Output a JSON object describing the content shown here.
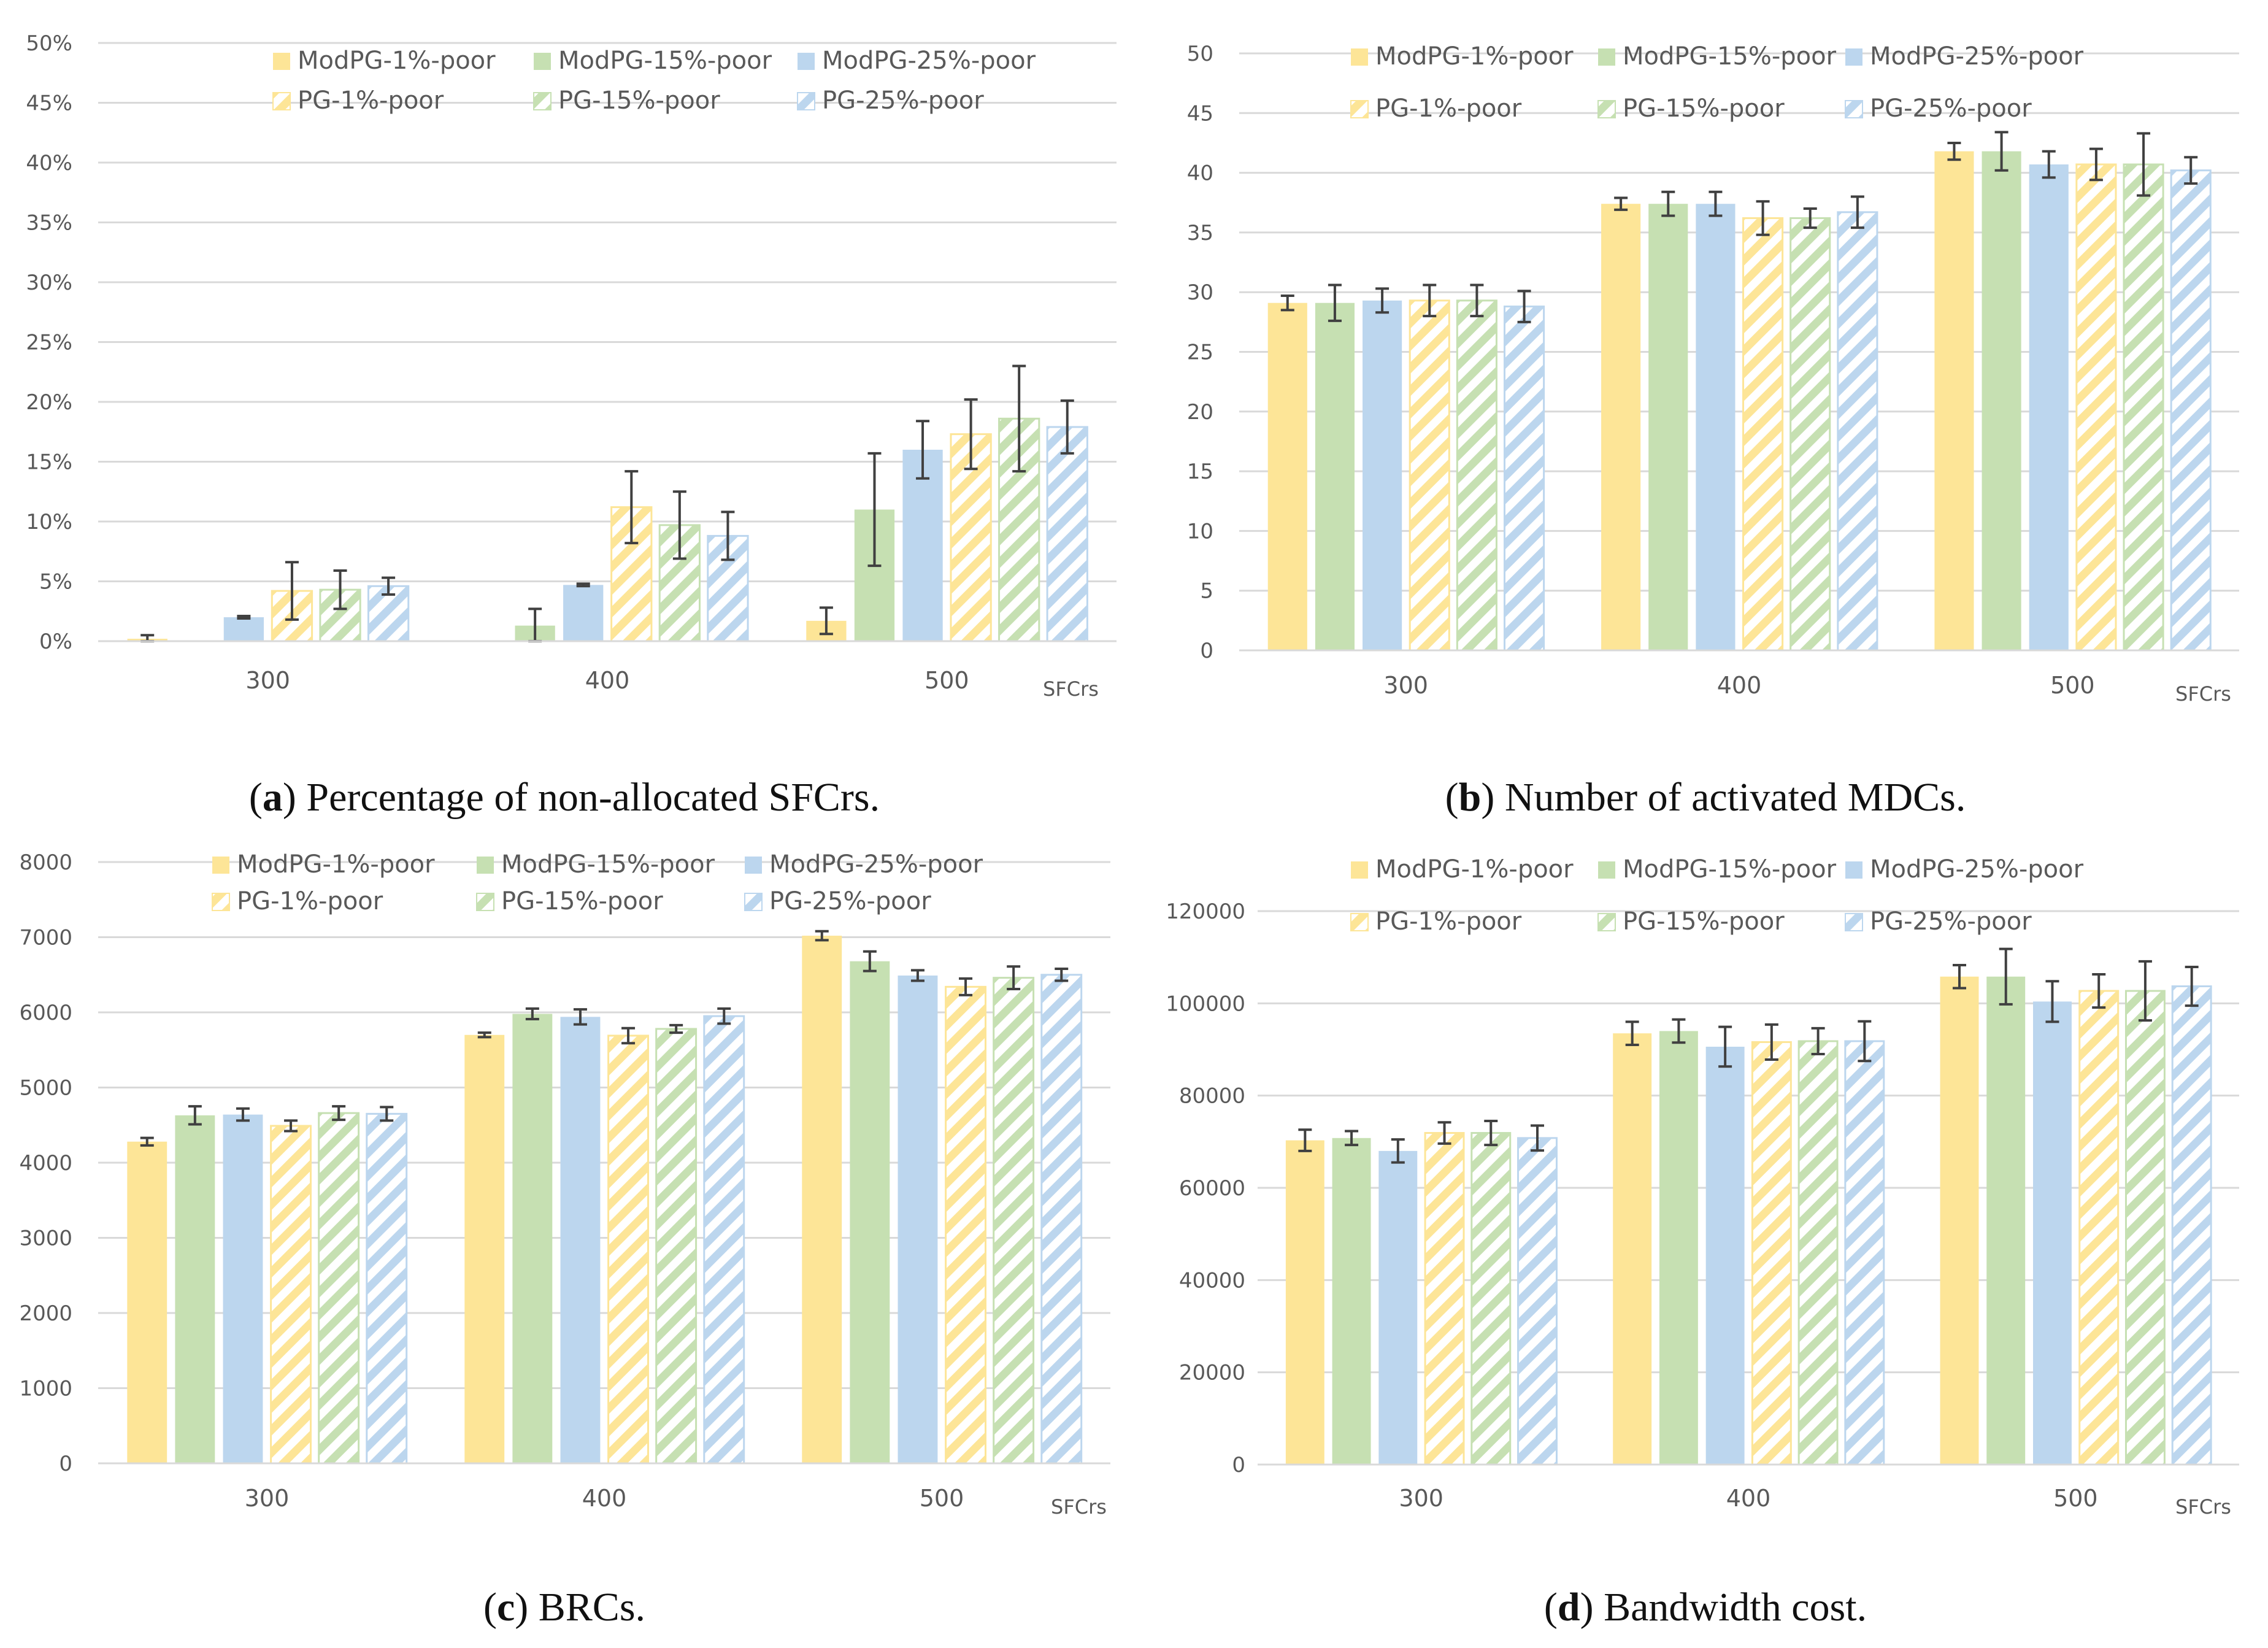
{
  "colors": {
    "ModPG-1%-poor": "#fde597",
    "ModPG-15%-poor": "#c6e0b2",
    "ModPG-25%-poor": "#bcd6ee",
    "PG-1%-poor": "#fde597",
    "PG-15%-poor": "#c6e0b2",
    "PG-25%-poor": "#bcd6ee",
    "grid": "#d9d9d9",
    "axis_text": "#595959",
    "errbar": "#404040"
  },
  "captions": [
    {
      "letter": "a",
      "text": "Percentage of non-allocated SFCrs."
    },
    {
      "letter": "b",
      "text": "Number of activated MDCs."
    },
    {
      "letter": "c",
      "text": "BRCs."
    },
    {
      "letter": "d",
      "text": "Bandwidth cost."
    }
  ],
  "chart_data": [
    {
      "id": "a",
      "type": "bar",
      "title": "Percentage of non-allocated SFCrs.",
      "xlabel": "SFCrs",
      "ylabel": "",
      "categories": [
        "300",
        "400",
        "500"
      ],
      "ylim": [
        0,
        50
      ],
      "yticks": [
        "0%",
        "5%",
        "10%",
        "15%",
        "20%",
        "25%",
        "30%",
        "35%",
        "40%",
        "45%",
        "50%"
      ],
      "ytick_values": [
        0,
        5,
        10,
        15,
        20,
        25,
        30,
        35,
        40,
        45,
        50
      ],
      "legend": "top",
      "grid": true,
      "series": [
        {
          "name": "ModPG-1%-poor",
          "hatched": false,
          "values": [
            0.2,
            0,
            1.7
          ],
          "errors": [
            0.3,
            0,
            1.1
          ]
        },
        {
          "name": "ModPG-15%-poor",
          "hatched": false,
          "values": [
            0,
            1.3,
            11.0
          ],
          "errors": [
            0,
            1.4,
            4.7
          ]
        },
        {
          "name": "ModPG-25%-poor",
          "hatched": false,
          "values": [
            2.0,
            4.7,
            16.0
          ],
          "errors": [
            0.1,
            0.1,
            2.4
          ]
        },
        {
          "name": "PG-1%-poor",
          "hatched": true,
          "values": [
            4.2,
            11.2,
            17.3
          ],
          "errors": [
            2.4,
            3.0,
            2.9
          ]
        },
        {
          "name": "PG-15%-poor",
          "hatched": true,
          "values": [
            4.3,
            9.7,
            18.6
          ],
          "errors": [
            1.6,
            2.8,
            4.4
          ]
        },
        {
          "name": "PG-25%-poor",
          "hatched": true,
          "values": [
            4.6,
            8.8,
            17.9
          ],
          "errors": [
            0.7,
            2.0,
            2.2
          ]
        }
      ]
    },
    {
      "id": "b",
      "type": "bar",
      "title": "Number of activated MDCs.",
      "xlabel": "SFCrs",
      "ylabel": "",
      "categories": [
        "300",
        "400",
        "500"
      ],
      "ylim": [
        0,
        50
      ],
      "yticks": [
        "0",
        "5",
        "10",
        "15",
        "20",
        "25",
        "30",
        "35",
        "40",
        "45",
        "50"
      ],
      "ytick_values": [
        0,
        5,
        10,
        15,
        20,
        25,
        30,
        35,
        40,
        45,
        50
      ],
      "legend": "top",
      "grid": true,
      "series": [
        {
          "name": "ModPG-1%-poor",
          "hatched": false,
          "values": [
            29.1,
            37.4,
            41.8
          ],
          "errors": [
            0.6,
            0.5,
            0.7
          ]
        },
        {
          "name": "ModPG-15%-poor",
          "hatched": false,
          "values": [
            29.1,
            37.4,
            41.8
          ],
          "errors": [
            1.5,
            1.0,
            1.6
          ]
        },
        {
          "name": "ModPG-25%-poor",
          "hatched": false,
          "values": [
            29.3,
            37.4,
            40.7
          ],
          "errors": [
            1.0,
            1.0,
            1.1
          ]
        },
        {
          "name": "PG-1%-poor",
          "hatched": true,
          "values": [
            29.3,
            36.2,
            40.7
          ],
          "errors": [
            1.3,
            1.4,
            1.3
          ]
        },
        {
          "name": "PG-15%-poor",
          "hatched": true,
          "values": [
            29.3,
            36.2,
            40.7
          ],
          "errors": [
            1.3,
            0.8,
            2.6
          ]
        },
        {
          "name": "PG-25%-poor",
          "hatched": true,
          "values": [
            28.8,
            36.7,
            40.2
          ],
          "errors": [
            1.3,
            1.3,
            1.1
          ]
        }
      ]
    },
    {
      "id": "c",
      "type": "bar",
      "title": "BRCs.",
      "xlabel": "SFCrs",
      "ylabel": "",
      "categories": [
        "300",
        "400",
        "500"
      ],
      "ylim": [
        0,
        8000
      ],
      "yticks": [
        "0",
        "1000",
        "2000",
        "3000",
        "4000",
        "5000",
        "6000",
        "7000",
        "8000"
      ],
      "ytick_values": [
        0,
        1000,
        2000,
        3000,
        4000,
        5000,
        6000,
        7000,
        8000
      ],
      "legend": "top",
      "grid": true,
      "series": [
        {
          "name": "ModPG-1%-poor",
          "hatched": false,
          "values": [
            4280,
            5700,
            7020
          ],
          "errors": [
            50,
            30,
            60
          ]
        },
        {
          "name": "ModPG-15%-poor",
          "hatched": false,
          "values": [
            4630,
            5980,
            6680
          ],
          "errors": [
            120,
            70,
            130
          ]
        },
        {
          "name": "ModPG-25%-poor",
          "hatched": false,
          "values": [
            4640,
            5940,
            6490
          ],
          "errors": [
            80,
            100,
            70
          ]
        },
        {
          "name": "PG-1%-poor",
          "hatched": true,
          "values": [
            4490,
            5690,
            6340
          ],
          "errors": [
            70,
            100,
            110
          ]
        },
        {
          "name": "PG-15%-poor",
          "hatched": true,
          "values": [
            4660,
            5780,
            6460
          ],
          "errors": [
            90,
            50,
            150
          ]
        },
        {
          "name": "PG-25%-poor",
          "hatched": true,
          "values": [
            4650,
            5950,
            6500
          ],
          "errors": [
            90,
            100,
            80
          ]
        }
      ]
    },
    {
      "id": "d",
      "type": "bar",
      "title": "Bandwidth cost.",
      "xlabel": "SFCrs",
      "ylabel": "",
      "categories": [
        "300",
        "400",
        "500"
      ],
      "ylim": [
        0,
        120000
      ],
      "yticks": [
        "0",
        "20000",
        "40000",
        "60000",
        "80000",
        "100000",
        "120000"
      ],
      "ytick_values": [
        0,
        20000,
        40000,
        60000,
        80000,
        100000,
        120000
      ],
      "legend": "top",
      "grid": true,
      "series": [
        {
          "name": "ModPG-1%-poor",
          "hatched": false,
          "values": [
            70300,
            93500,
            105800
          ],
          "errors": [
            2300,
            2500,
            2500
          ]
        },
        {
          "name": "ModPG-15%-poor",
          "hatched": false,
          "values": [
            70800,
            94000,
            105800
          ],
          "errors": [
            1500,
            2500,
            6000
          ]
        },
        {
          "name": "ModPG-25%-poor",
          "hatched": false,
          "values": [
            68000,
            90600,
            100400
          ],
          "errors": [
            2500,
            4300,
            4400
          ]
        },
        {
          "name": "PG-1%-poor",
          "hatched": true,
          "values": [
            71900,
            91600,
            102700
          ],
          "errors": [
            2300,
            3800,
            3600
          ]
        },
        {
          "name": "PG-15%-poor",
          "hatched": true,
          "values": [
            71900,
            91800,
            102700
          ],
          "errors": [
            2600,
            2800,
            6400
          ]
        },
        {
          "name": "PG-25%-poor",
          "hatched": true,
          "values": [
            70800,
            91800,
            103700
          ],
          "errors": [
            2700,
            4300,
            4200
          ]
        }
      ]
    }
  ]
}
